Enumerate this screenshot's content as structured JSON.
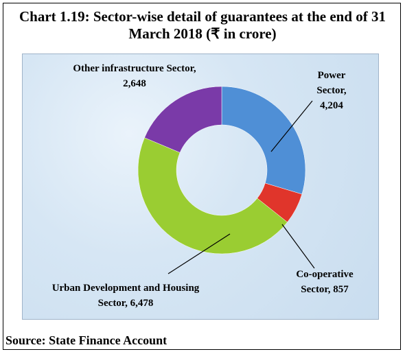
{
  "chart_data": {
    "type": "donut",
    "title": "Chart 1.19: Sector-wise detail of guarantees at the end of 31 March 2018 (₹ in crore)",
    "categories": [
      "Power Sector",
      "Co-operative Sector",
      "Urban Development and Housing Sector",
      "Other infrastructure Sector"
    ],
    "values": [
      4204,
      857,
      6478,
      2648
    ],
    "value_labels": [
      "4,204",
      "857",
      "6,478",
      "2,648"
    ],
    "label_separator": ",",
    "colors": [
      "#4f8fd6",
      "#e0352b",
      "#9acd32",
      "#7a3aa8"
    ],
    "source": "Source: State Finance Account"
  }
}
